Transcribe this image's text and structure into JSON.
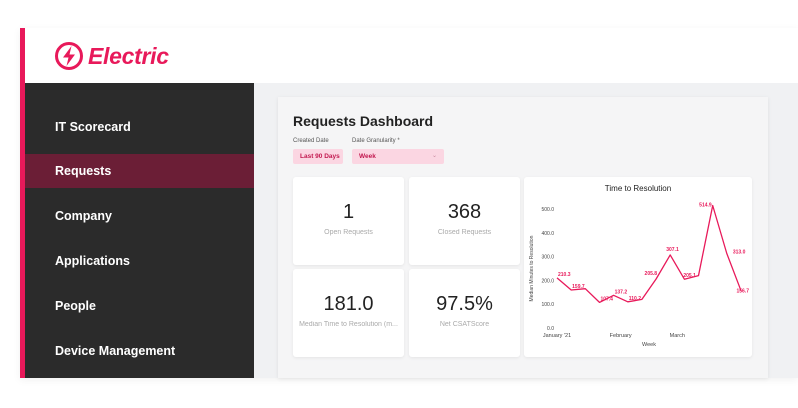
{
  "brand": {
    "name": "Electric",
    "icon": "lightning-bolt-icon",
    "accent": "#e8195a"
  },
  "sidebar": {
    "items": [
      {
        "label": "IT Scorecard",
        "active": false
      },
      {
        "label": "Requests",
        "active": true
      },
      {
        "label": "Company",
        "active": false
      },
      {
        "label": "Applications",
        "active": false
      },
      {
        "label": "People",
        "active": false
      },
      {
        "label": "Device Management",
        "active": false
      }
    ]
  },
  "dashboard": {
    "title": "Requests Dashboard",
    "filters": {
      "created_date": {
        "label": "Created Date",
        "value": "Last 90 Days"
      },
      "granularity": {
        "label": "Date Granularity *",
        "value": "Week"
      }
    },
    "metrics": [
      {
        "value": "1",
        "label": "Open Requests"
      },
      {
        "value": "368",
        "label": "Closed Requests"
      },
      {
        "value": "181.0",
        "label": "Median Time to Resolution (m..."
      },
      {
        "value": "97.5%",
        "label": "Net CSATScore"
      }
    ]
  },
  "chart_data": {
    "type": "line",
    "title": "Time to Resolution",
    "xlabel": "Week",
    "ylabel": "Median Minutes to Resolution",
    "ylim": [
      0,
      500
    ],
    "y_ticks": [
      "0.0",
      "100.0",
      "200.0",
      "300.0",
      "400.0",
      "500.0"
    ],
    "x_ticks": [
      {
        "label": "January '21",
        "index": 0
      },
      {
        "label": "February",
        "index": 4.5
      },
      {
        "label": "March",
        "index": 8.5
      }
    ],
    "series": [
      {
        "color": "#e8195a",
        "values": [
          210.3,
          159.7,
          165,
          107.4,
          137.2,
          110.2,
          120,
          205.8,
          307.1,
          205.1,
          220,
          514.9,
          313.0,
          156.7
        ],
        "labels": [
          "210.3",
          "159.7",
          "",
          "107.4",
          "137.2",
          "110.2",
          "",
          "205.8",
          "307.1",
          "205.1",
          "",
          "514.9",
          "313.0",
          "156.7"
        ]
      }
    ],
    "grid": false,
    "legend": "none"
  }
}
